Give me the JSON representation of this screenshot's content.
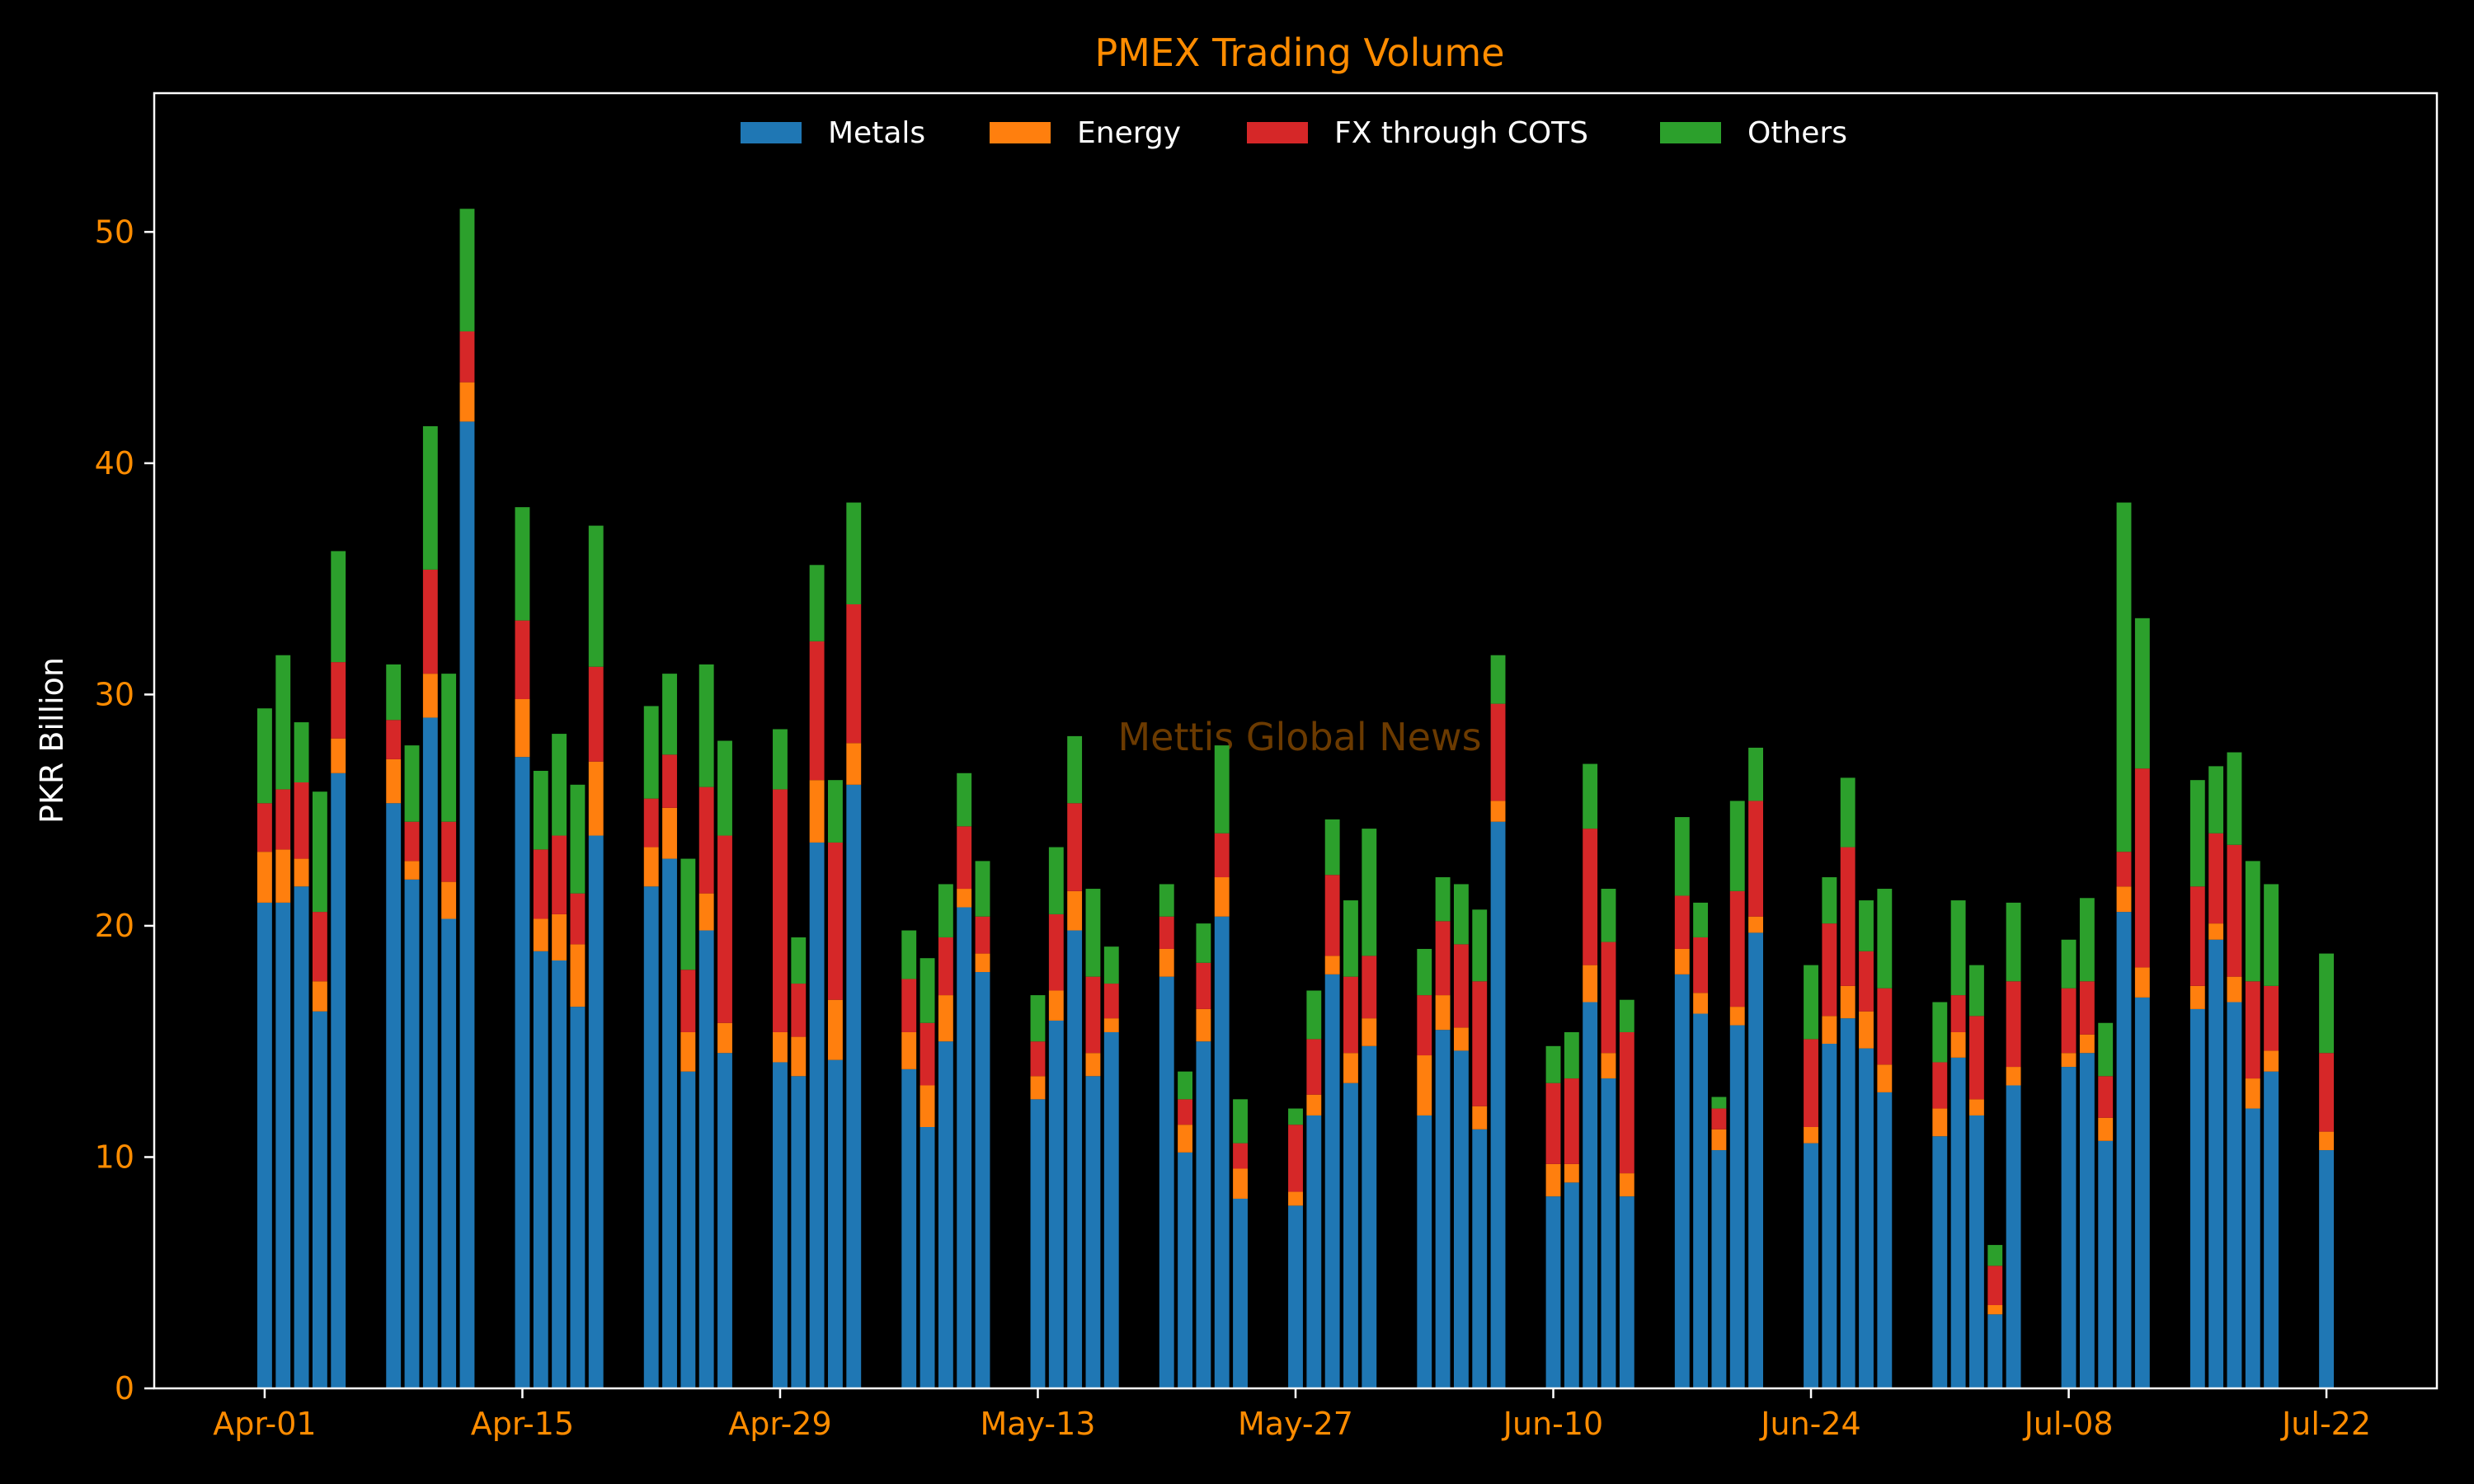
{
  "chart_data": {
    "type": "bar",
    "stacked": true,
    "title": "PMEX Trading Volume",
    "xlabel": "",
    "ylabel": "PKR Billion",
    "ylim": [
      0,
      56
    ],
    "yticks": [
      0,
      10,
      20,
      30,
      40,
      50
    ],
    "xlim": [
      "2024-03-26",
      "2024-07-28"
    ],
    "xticks": [
      "2024-04-01",
      "2024-04-15",
      "2024-04-29",
      "2024-05-13",
      "2024-05-27",
      "2024-06-10",
      "2024-06-24",
      "2024-07-08",
      "2024-07-22"
    ],
    "xtick_labels": [
      "Apr-01",
      "Apr-15",
      "Apr-29",
      "May-13",
      "May-27",
      "Jun-10",
      "Jun-24",
      "Jul-08",
      "Jul-22"
    ],
    "legend_position": "top-center",
    "grid": false,
    "watermark": "Mettis Global News",
    "x": [
      "2024-04-01",
      "2024-04-02",
      "2024-04-03",
      "2024-04-04",
      "2024-04-05",
      "2024-04-08",
      "2024-04-09",
      "2024-04-10",
      "2024-04-11",
      "2024-04-12",
      "2024-04-15",
      "2024-04-16",
      "2024-04-17",
      "2024-04-18",
      "2024-04-19",
      "2024-04-22",
      "2024-04-23",
      "2024-04-24",
      "2024-04-25",
      "2024-04-26",
      "2024-04-29",
      "2024-04-30",
      "2024-05-01",
      "2024-05-02",
      "2024-05-03",
      "2024-05-06",
      "2024-05-07",
      "2024-05-08",
      "2024-05-09",
      "2024-05-10",
      "2024-05-13",
      "2024-05-14",
      "2024-05-15",
      "2024-05-16",
      "2024-05-17",
      "2024-05-20",
      "2024-05-21",
      "2024-05-22",
      "2024-05-23",
      "2024-05-24",
      "2024-05-27",
      "2024-05-28",
      "2024-05-29",
      "2024-05-30",
      "2024-05-31",
      "2024-06-03",
      "2024-06-04",
      "2024-06-05",
      "2024-06-06",
      "2024-06-07",
      "2024-06-10",
      "2024-06-11",
      "2024-06-12",
      "2024-06-13",
      "2024-06-14",
      "2024-06-17",
      "2024-06-18",
      "2024-06-19",
      "2024-06-20",
      "2024-06-21",
      "2024-06-24",
      "2024-06-25",
      "2024-06-26",
      "2024-06-27",
      "2024-06-28",
      "2024-07-01",
      "2024-07-02",
      "2024-07-03",
      "2024-07-04",
      "2024-07-05",
      "2024-07-08",
      "2024-07-09",
      "2024-07-10",
      "2024-07-11",
      "2024-07-12",
      "2024-07-15",
      "2024-07-16",
      "2024-07-17",
      "2024-07-18",
      "2024-07-19",
      "2024-07-22"
    ],
    "series": [
      {
        "name": "Metals",
        "color": "#1f77b4",
        "values": [
          21.0,
          21.0,
          21.7,
          16.3,
          26.6,
          25.3,
          22.0,
          29.0,
          20.3,
          41.8,
          27.3,
          18.9,
          18.5,
          16.5,
          23.9,
          21.7,
          22.9,
          13.7,
          19.8,
          14.5,
          14.1,
          13.5,
          23.6,
          14.2,
          26.1,
          13.8,
          11.3,
          15.0,
          20.8,
          18.0,
          12.5,
          15.9,
          19.8,
          13.5,
          15.4,
          17.8,
          10.2,
          15.0,
          20.4,
          8.2,
          7.9,
          11.8,
          17.9,
          13.2,
          14.8,
          11.8,
          15.5,
          14.6,
          11.2,
          24.5,
          8.3,
          8.9,
          16.7,
          13.4,
          8.3,
          17.9,
          16.2,
          10.3,
          15.7,
          19.7,
          10.6,
          14.9,
          16.0,
          14.7,
          12.8,
          10.9,
          14.3,
          11.8,
          3.2,
          13.1,
          13.9,
          14.5,
          10.7,
          20.6,
          16.9,
          16.4,
          19.4,
          16.7,
          12.1,
          13.7,
          10.3
        ]
      },
      {
        "name": "Energy",
        "color": "#ff7f0e",
        "values": [
          2.2,
          2.3,
          1.2,
          1.3,
          1.5,
          1.9,
          0.8,
          1.9,
          1.6,
          1.7,
          2.5,
          1.4,
          2.0,
          2.7,
          3.2,
          1.7,
          2.2,
          1.7,
          1.6,
          1.3,
          1.3,
          1.7,
          2.7,
          2.6,
          1.8,
          1.6,
          1.8,
          2.0,
          0.8,
          0.8,
          1.0,
          1.3,
          1.7,
          1.0,
          0.6,
          1.2,
          1.2,
          1.4,
          1.7,
          1.3,
          0.6,
          0.9,
          0.8,
          1.3,
          1.2,
          2.6,
          1.5,
          1.0,
          1.0,
          0.9,
          1.4,
          0.8,
          1.6,
          1.1,
          1.0,
          1.1,
          0.9,
          0.9,
          0.8,
          0.7,
          0.7,
          1.2,
          1.4,
          1.6,
          1.2,
          1.2,
          1.1,
          0.7,
          0.4,
          0.8,
          0.6,
          0.8,
          1.0,
          1.1,
          1.3,
          1.0,
          0.7,
          1.1,
          1.3,
          0.9,
          0.8
        ]
      },
      {
        "name": "FX through COTS",
        "color": "#d62728",
        "values": [
          2.1,
          2.6,
          3.3,
          3.0,
          3.3,
          1.7,
          1.7,
          4.5,
          2.6,
          2.2,
          3.4,
          3.0,
          3.4,
          2.2,
          4.1,
          2.1,
          2.3,
          2.7,
          4.6,
          8.1,
          10.5,
          2.3,
          6.0,
          6.8,
          6.0,
          2.3,
          2.7,
          2.5,
          2.7,
          1.6,
          1.5,
          3.3,
          3.8,
          3.3,
          1.5,
          1.4,
          1.1,
          2.0,
          1.9,
          1.1,
          2.9,
          2.4,
          3.5,
          3.3,
          2.7,
          2.6,
          3.2,
          3.6,
          5.4,
          4.2,
          3.5,
          3.7,
          5.9,
          4.8,
          6.1,
          2.3,
          2.4,
          0.9,
          5.0,
          5.0,
          3.8,
          4.0,
          6.0,
          2.6,
          3.3,
          2.0,
          1.6,
          3.6,
          1.7,
          3.7,
          2.8,
          2.3,
          1.8,
          1.5,
          8.6,
          4.3,
          3.9,
          5.7,
          4.2,
          2.8,
          3.4
        ]
      },
      {
        "name": "Others",
        "color": "#2ca02c",
        "values": [
          4.1,
          5.8,
          2.6,
          5.2,
          4.8,
          2.4,
          3.3,
          6.2,
          6.4,
          5.3,
          4.9,
          3.4,
          4.4,
          4.7,
          6.1,
          4.0,
          3.5,
          4.8,
          5.3,
          4.1,
          2.6,
          2.0,
          3.3,
          2.7,
          4.4,
          2.1,
          2.8,
          2.3,
          2.3,
          2.4,
          2.0,
          2.9,
          2.9,
          3.8,
          1.6,
          1.4,
          1.2,
          1.7,
          3.8,
          1.9,
          0.7,
          2.1,
          2.4,
          3.3,
          5.5,
          2.0,
          1.9,
          2.6,
          3.1,
          2.1,
          1.6,
          2.0,
          2.8,
          2.3,
          1.4,
          3.4,
          1.5,
          0.5,
          3.9,
          2.3,
          3.2,
          2.0,
          3.0,
          2.2,
          4.3,
          2.6,
          4.1,
          2.2,
          0.9,
          3.4,
          2.1,
          3.6,
          2.3,
          15.1,
          6.5,
          4.6,
          2.9,
          4.0,
          5.2,
          4.4,
          4.3
        ]
      }
    ]
  }
}
